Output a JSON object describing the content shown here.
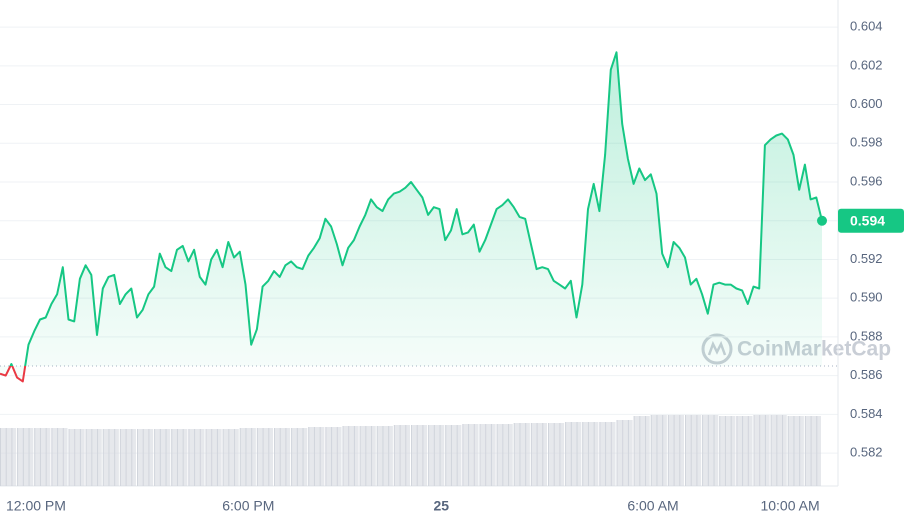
{
  "chart_data": {
    "type": "line",
    "series": [
      {
        "name": "Price",
        "color": "#16c784",
        "down_color": "#ea3943",
        "values": [
          0.5861,
          0.586,
          0.5866,
          0.5859,
          0.5857,
          0.5876,
          0.5883,
          0.5889,
          0.589,
          0.5897,
          0.5902,
          0.5916,
          0.5889,
          0.5888,
          0.591,
          0.5917,
          0.5912,
          0.5881,
          0.5905,
          0.5911,
          0.5912,
          0.5897,
          0.5902,
          0.5905,
          0.589,
          0.5894,
          0.5902,
          0.5906,
          0.5923,
          0.5916,
          0.5914,
          0.5925,
          0.5927,
          0.5919,
          0.5925,
          0.5911,
          0.5907,
          0.592,
          0.5925,
          0.5916,
          0.5929,
          0.5921,
          0.5924,
          0.5907,
          0.5876,
          0.5884,
          0.5906,
          0.5909,
          0.5914,
          0.5911,
          0.5917,
          0.5919,
          0.5916,
          0.5915,
          0.5922,
          0.5926,
          0.5931,
          0.5941,
          0.5937,
          0.5928,
          0.5917,
          0.5926,
          0.593,
          0.5937,
          0.5943,
          0.5951,
          0.5947,
          0.5945,
          0.5951,
          0.5954,
          0.5955,
          0.5957,
          0.596,
          0.5956,
          0.5952,
          0.5943,
          0.5947,
          0.5946,
          0.593,
          0.5935,
          0.5946,
          0.5933,
          0.5934,
          0.5938,
          0.5924,
          0.593,
          0.5938,
          0.5946,
          0.5948,
          0.5951,
          0.5947,
          0.5942,
          0.5941,
          0.5928,
          0.5915,
          0.5916,
          0.5915,
          0.5909,
          0.5907,
          0.5905,
          0.5909,
          0.589,
          0.5907,
          0.5946,
          0.5959,
          0.5945,
          0.5974,
          0.6018,
          0.6027,
          0.599,
          0.5972,
          0.5959,
          0.5967,
          0.5961,
          0.5964,
          0.5954,
          0.5923,
          0.5916,
          0.5929,
          0.5926,
          0.5921,
          0.5907,
          0.591,
          0.5902,
          0.5892,
          0.5907,
          0.5908,
          0.5907,
          0.5907,
          0.5905,
          0.5904,
          0.5897,
          0.5906,
          0.5905,
          0.5979,
          0.5982,
          0.5984,
          0.5985,
          0.5982,
          0.5974,
          0.5956,
          0.5969,
          0.5951,
          0.5952,
          0.594
        ]
      }
    ],
    "open_price": 0.5865,
    "current_price": 0.594,
    "current_price_label": "0.594",
    "xlim": [
      0,
      144
    ],
    "xticks": [
      {
        "value": 6.3,
        "label": "12:00 PM"
      },
      {
        "value": 43.5,
        "label": "6:00 PM"
      },
      {
        "value": 77.3,
        "label": "25"
      },
      {
        "value": 114.4,
        "label": "6:00 AM"
      },
      {
        "value": 138.4,
        "label": "10:00 AM"
      }
    ],
    "ylim": [
      0.5803,
      0.6054
    ],
    "yticks": [
      0.582,
      0.584,
      0.586,
      0.588,
      0.59,
      0.592,
      0.594,
      0.596,
      0.598,
      0.6,
      0.602,
      0.604
    ],
    "ytick_labels": [
      "0.582",
      "0.584",
      "0.586",
      "0.588",
      "0.590",
      "0.592",
      "0.594",
      "0.596",
      "0.598",
      "0.600",
      "0.602",
      "0.604"
    ],
    "grid": true,
    "volume": {
      "color": "#d1d5dc",
      "values": [
        58,
        58,
        58,
        58,
        57,
        57,
        57,
        57,
        57,
        57,
        57,
        57,
        57,
        57,
        58,
        58,
        58,
        58,
        59,
        59,
        60,
        60,
        60,
        61,
        61,
        61,
        61,
        62,
        62,
        62,
        63,
        63,
        63,
        64,
        64,
        64,
        66,
        70,
        71,
        71,
        71,
        71,
        70,
        70,
        71,
        71,
        70,
        70
      ]
    },
    "watermark": "CoinMarketCap"
  }
}
